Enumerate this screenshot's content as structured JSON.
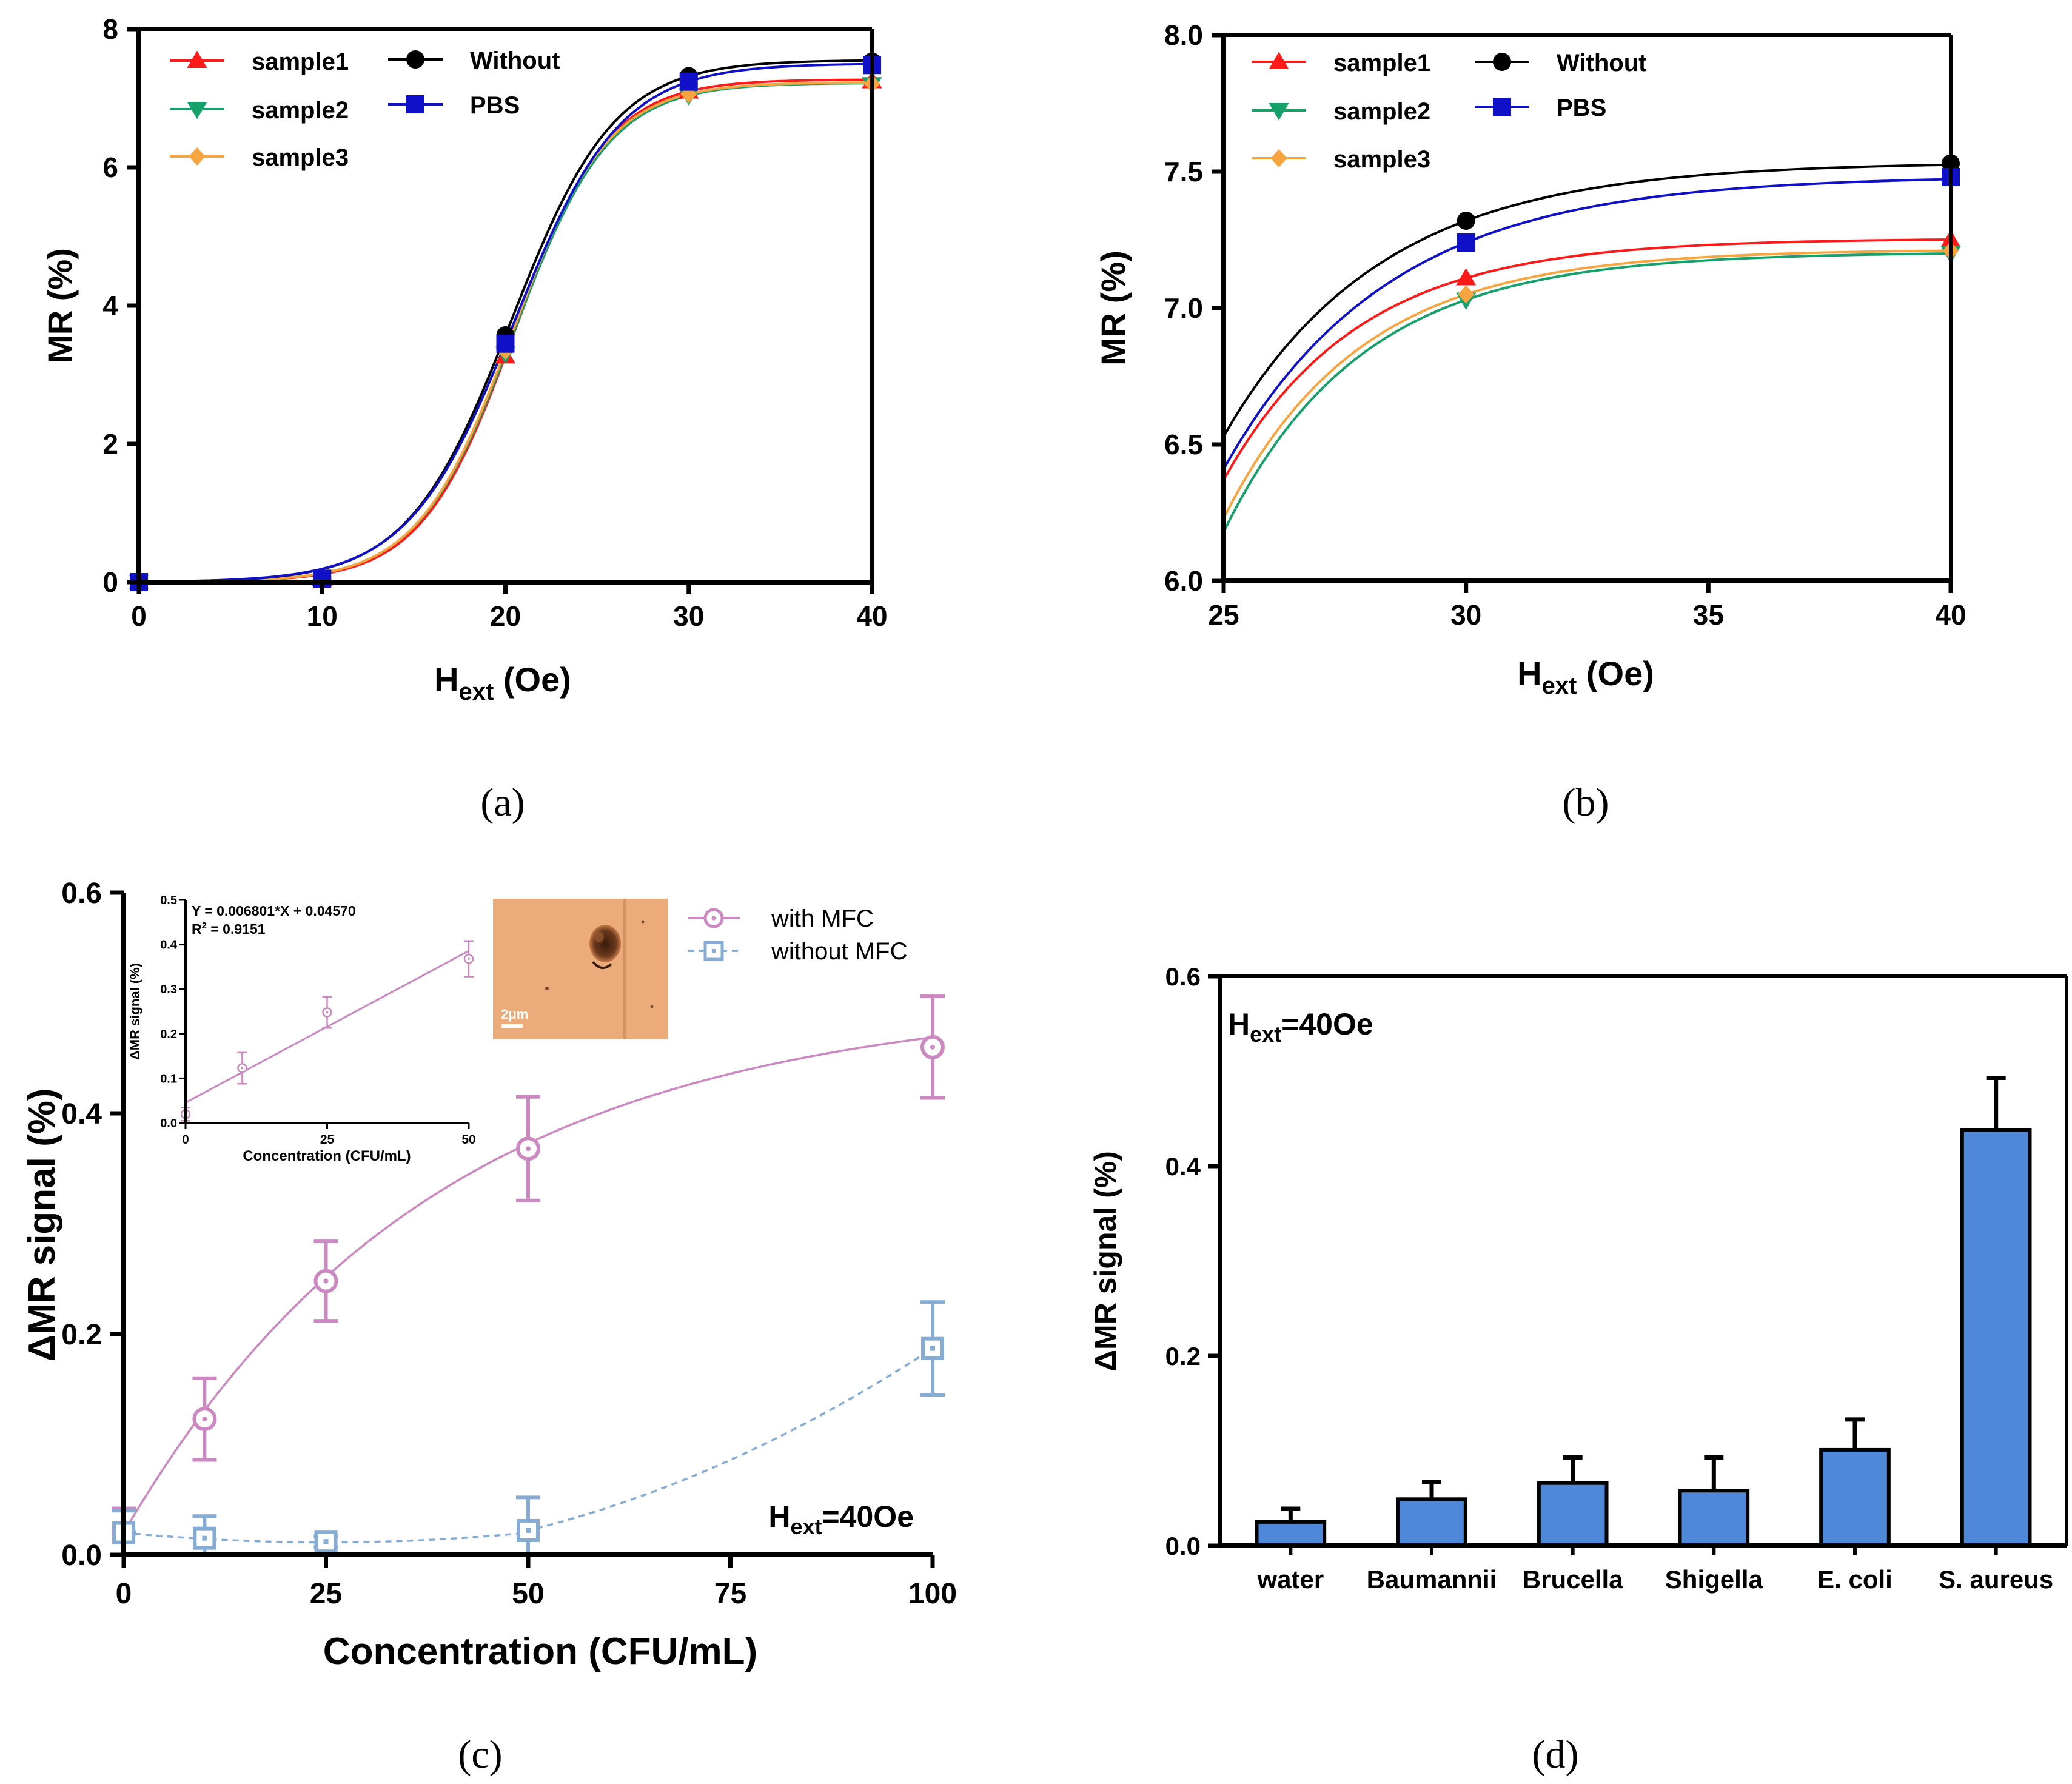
{
  "colors": {
    "sample1": "#ff1a1a",
    "sample2": "#16a06a",
    "sample3": "#f7a540",
    "without": "#000000",
    "pbs": "#1010c8",
    "with_mfc": "#cc88c0",
    "without_mfc": "#86acd6",
    "bar": "#4f88d8"
  },
  "panel_labels": {
    "a": "(a)",
    "b": "(b)",
    "c": "(c)",
    "d": "(d)"
  },
  "chart_data": [
    {
      "id": "a",
      "type": "line",
      "title": "",
      "xlabel_main": "H",
      "xlabel_sub": "ext",
      "xlabel_tail": " (Oe)",
      "ylabel": "MR (%)",
      "xlim": [
        0,
        40
      ],
      "ylim": [
        0,
        8
      ],
      "xticks": [
        "0",
        "10",
        "20",
        "30",
        "40"
      ],
      "yticks": [
        "0",
        "2",
        "4",
        "6",
        "8"
      ],
      "legend": [
        "sample1",
        "sample2",
        "sample3",
        "Without",
        "PBS"
      ],
      "x": [
        0,
        10,
        20,
        30,
        40
      ],
      "series": [
        {
          "name": "sample1",
          "marker": "triangle-up",
          "values": [
            0,
            0.05,
            3.27,
            7.1,
            7.25
          ]
        },
        {
          "name": "sample2",
          "marker": "triangle-down",
          "values": [
            0,
            0.05,
            3.3,
            7.04,
            7.2
          ]
        },
        {
          "name": "sample3",
          "marker": "diamond",
          "values": [
            0,
            0.05,
            3.35,
            7.06,
            7.21
          ]
        },
        {
          "name": "Without",
          "marker": "circle",
          "values": [
            0,
            0.05,
            3.57,
            7.32,
            7.53
          ]
        },
        {
          "name": "PBS",
          "marker": "square",
          "values": [
            0,
            0.05,
            3.45,
            7.24,
            7.48
          ]
        }
      ]
    },
    {
      "id": "b",
      "type": "line",
      "title": "",
      "xlabel_main": "H",
      "xlabel_sub": "ext",
      "xlabel_tail": " (Oe)",
      "ylabel": "MR (%)",
      "xlim": [
        25,
        40
      ],
      "ylim": [
        6.0,
        8.0
      ],
      "xticks": [
        "25",
        "30",
        "35",
        "40"
      ],
      "yticks": [
        "6.0",
        "6.5",
        "7.0",
        "7.5",
        "8.0"
      ],
      "legend": [
        "sample1",
        "sample2",
        "sample3",
        "Without",
        "PBS"
      ],
      "x": [
        30,
        40
      ],
      "series": [
        {
          "name": "sample1",
          "marker": "triangle-up",
          "values": [
            7.11,
            7.25
          ]
        },
        {
          "name": "sample2",
          "marker": "triangle-down",
          "values": [
            7.03,
            7.2
          ]
        },
        {
          "name": "sample3",
          "marker": "diamond",
          "values": [
            7.05,
            7.21
          ]
        },
        {
          "name": "Without",
          "marker": "circle",
          "values": [
            7.32,
            7.53
          ]
        },
        {
          "name": "PBS",
          "marker": "square",
          "values": [
            7.24,
            7.48
          ]
        }
      ]
    },
    {
      "id": "c",
      "type": "line",
      "title": "",
      "xlabel": "Concentration (CFU/mL)",
      "ylabel": "ΔMR signal (%)",
      "xlim": [
        0,
        100
      ],
      "ylim": [
        0,
        0.6
      ],
      "xticks": [
        "0",
        "25",
        "50",
        "75",
        "100"
      ],
      "yticks": [
        "0.0",
        "0.2",
        "0.4",
        "0.6"
      ],
      "annotation_main": "H",
      "annotation_sub": "ext",
      "annotation_tail": "=40Oe",
      "legend": [
        "with MFC",
        "without MFC"
      ],
      "x": [
        0,
        10,
        25,
        50,
        100
      ],
      "series": [
        {
          "name": "with MFC",
          "values": [
            0.02,
            0.123,
            0.248,
            0.368,
            0.46
          ],
          "errors": [
            0.022,
            0.037,
            0.036,
            0.047,
            0.046
          ]
        },
        {
          "name": "without MFC",
          "values": [
            0.02,
            0.015,
            0.012,
            0.022,
            0.187
          ],
          "errors": [
            0.02,
            0.02,
            0.005,
            0.03,
            0.042
          ]
        }
      ],
      "inset": {
        "type": "line",
        "xlabel": "Concentration (CFU/mL)",
        "ylabel": "ΔMR signal (%)",
        "xlim": [
          0,
          50
        ],
        "ylim": [
          0,
          0.5
        ],
        "xticks": [
          "0",
          "25",
          "50"
        ],
        "yticks": [
          "0.0",
          "0.1",
          "0.2",
          "0.3",
          "0.4",
          "0.5"
        ],
        "equation": "Y = 0.006801*X + 0.04570",
        "r2_main": "R",
        "r2_sup": "2",
        "r2_tail": " = 0.9151",
        "x": [
          0,
          10,
          25,
          50
        ],
        "values": [
          0.02,
          0.123,
          0.248,
          0.368
        ],
        "errors": [
          0.015,
          0.035,
          0.035,
          0.04
        ],
        "fit": {
          "slope": 0.006801,
          "intercept": 0.0457
        },
        "scale_bar": "2μm"
      }
    },
    {
      "id": "d",
      "type": "bar",
      "title": "",
      "xlabel": "",
      "ylabel": "ΔMR signal (%)",
      "ylim": [
        0,
        0.6
      ],
      "yticks": [
        "0.0",
        "0.2",
        "0.4",
        "0.6"
      ],
      "annotation_main": "H",
      "annotation_sub": "ext",
      "annotation_tail": "=40Oe",
      "categories": [
        "water",
        "Baumannii",
        "Brucella",
        "Shigella",
        "E. coli",
        "S. aureus"
      ],
      "values": [
        0.025,
        0.049,
        0.066,
        0.058,
        0.101,
        0.438
      ],
      "errors": [
        0.014,
        0.018,
        0.027,
        0.035,
        0.032,
        0.055
      ]
    }
  ]
}
